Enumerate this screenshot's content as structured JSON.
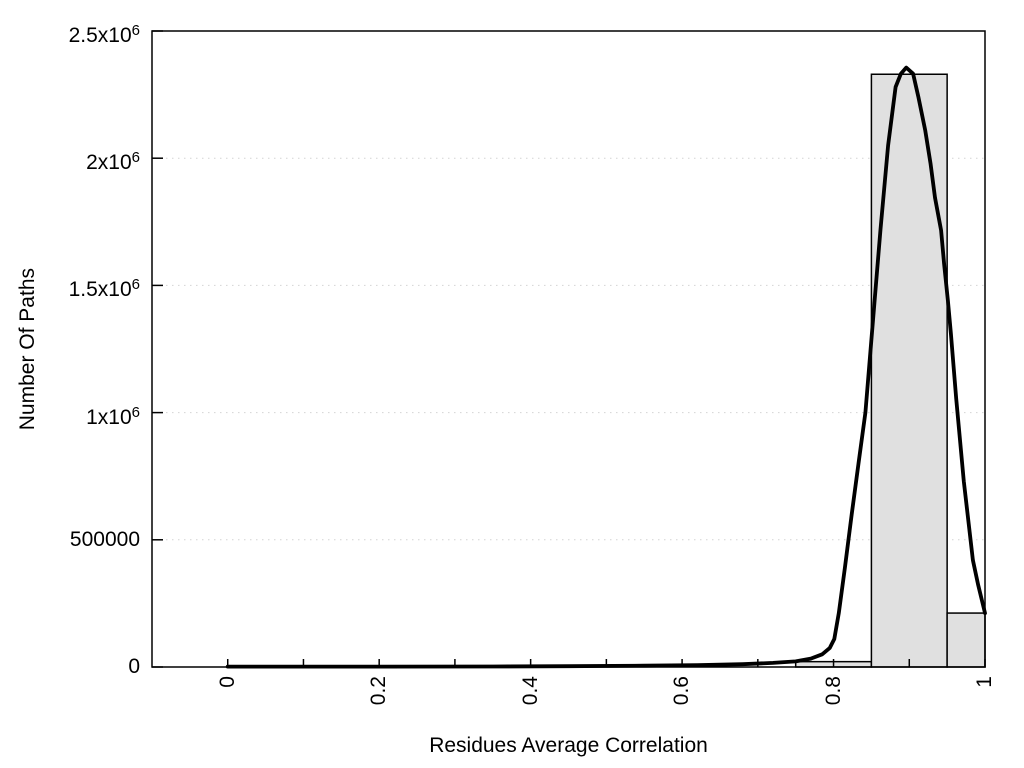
{
  "chart_data": {
    "type": "bar+line",
    "title": "",
    "xlabel": "Residues Average Correlation",
    "ylabel": "Number Of Paths",
    "xlim": [
      -0.1,
      1.0
    ],
    "ylim": [
      0,
      2500000
    ],
    "grid": "horizontal-dotted",
    "legend": "none",
    "x_ticks": [
      {
        "v": 0,
        "label": "0"
      },
      {
        "v": 0.1,
        "label": ""
      },
      {
        "v": 0.2,
        "label": "0.2"
      },
      {
        "v": 0.3,
        "label": ""
      },
      {
        "v": 0.4,
        "label": "0.4"
      },
      {
        "v": 0.5,
        "label": ""
      },
      {
        "v": 0.6,
        "label": "0.6"
      },
      {
        "v": 0.7,
        "label": ""
      },
      {
        "v": 0.8,
        "label": "0.8"
      },
      {
        "v": 0.9,
        "label": ""
      },
      {
        "v": 1,
        "label": "1"
      }
    ],
    "y_ticks": [
      {
        "v": 0,
        "mantissa": "0",
        "exp": ""
      },
      {
        "v": 500000,
        "mantissa": "500000",
        "exp": ""
      },
      {
        "v": 1000000,
        "mantissa": "1x10",
        "exp": "6"
      },
      {
        "v": 1500000,
        "mantissa": "1.5x10",
        "exp": "6"
      },
      {
        "v": 2000000,
        "mantissa": "2x10",
        "exp": "6"
      },
      {
        "v": 2500000,
        "mantissa": "2.5x10",
        "exp": "6"
      }
    ],
    "bars": [
      {
        "x0": 0.75,
        "x1": 0.85,
        "value": 21000
      },
      {
        "x0": 0.85,
        "x1": 0.95,
        "value": 2330000
      },
      {
        "x0": 0.95,
        "x1": 1.0,
        "value": 212000
      }
    ],
    "curve": [
      [
        0.0,
        1500
      ],
      [
        0.2,
        1500
      ],
      [
        0.35,
        2000
      ],
      [
        0.45,
        3000
      ],
      [
        0.55,
        5000
      ],
      [
        0.62,
        7000
      ],
      [
        0.68,
        11000
      ],
      [
        0.72,
        16000
      ],
      [
        0.75,
        22000
      ],
      [
        0.77,
        33000
      ],
      [
        0.785,
        50000
      ],
      [
        0.795,
        75000
      ],
      [
        0.801,
        110000
      ],
      [
        0.807,
        212000
      ],
      [
        0.815,
        390000
      ],
      [
        0.824,
        600000
      ],
      [
        0.833,
        800000
      ],
      [
        0.842,
        1000000
      ],
      [
        0.854,
        1430000
      ],
      [
        0.862,
        1720000
      ],
      [
        0.872,
        2050000
      ],
      [
        0.882,
        2280000
      ],
      [
        0.889,
        2332000
      ],
      [
        0.896,
        2356000
      ],
      [
        0.905,
        2332000
      ],
      [
        0.912,
        2240000
      ],
      [
        0.921,
        2110000
      ],
      [
        0.928,
        1980000
      ],
      [
        0.934,
        1845000
      ],
      [
        0.942,
        1716000
      ],
      [
        0.946,
        1585000
      ],
      [
        0.951,
        1440000
      ],
      [
        0.955,
        1310000
      ],
      [
        0.962,
        1055000
      ],
      [
        0.972,
        730000
      ],
      [
        0.984,
        420000
      ],
      [
        0.991,
        322000
      ],
      [
        1.0,
        212000
      ]
    ],
    "colors": {
      "background": "#ffffff",
      "bar_fill": "#e0e0e0",
      "bar_stroke": "#000000",
      "line": "#000000",
      "grid": "#d4d4d4",
      "axis": "#000000",
      "text": "#000000"
    }
  }
}
